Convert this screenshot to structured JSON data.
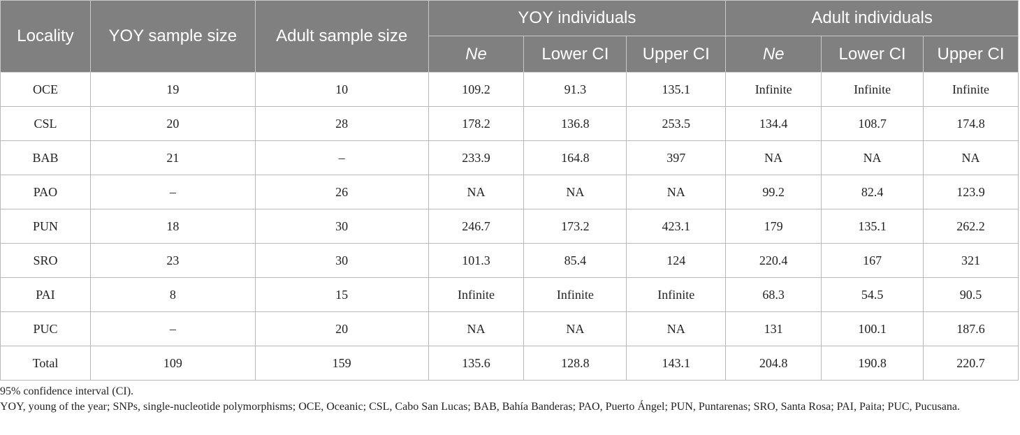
{
  "table": {
    "headers": {
      "locality": "Locality",
      "yoy_sample_size": "YOY sample size",
      "adult_sample_size": "Adult sample size",
      "yoy_group": "YOY individuals",
      "adult_group": "Adult individuals",
      "ne": "Ne",
      "lower_ci": "Lower CI",
      "upper_ci": "Upper CI"
    },
    "rows": [
      [
        "OCE",
        "19",
        "10",
        "109.2",
        "91.3",
        "135.1",
        "Infinite",
        "Infinite",
        "Infinite"
      ],
      [
        "CSL",
        "20",
        "28",
        "178.2",
        "136.8",
        "253.5",
        "134.4",
        "108.7",
        "174.8"
      ],
      [
        "BAB",
        "21",
        "–",
        "233.9",
        "164.8",
        "397",
        "NA",
        "NA",
        "NA"
      ],
      [
        "PAO",
        "–",
        "26",
        "NA",
        "NA",
        "NA",
        "99.2",
        "82.4",
        "123.9"
      ],
      [
        "PUN",
        "18",
        "30",
        "246.7",
        "173.2",
        "423.1",
        "179",
        "135.1",
        "262.2"
      ],
      [
        "SRO",
        "23",
        "30",
        "101.3",
        "85.4",
        "124",
        "220.4",
        "167",
        "321"
      ],
      [
        "PAI",
        "8",
        "15",
        "Infinite",
        "Infinite",
        "Infinite",
        "68.3",
        "54.5",
        "90.5"
      ],
      [
        "PUC",
        "–",
        "20",
        "NA",
        "NA",
        "NA",
        "131",
        "100.1",
        "187.6"
      ],
      [
        "Total",
        "109",
        "159",
        "135.6",
        "128.8",
        "143.1",
        "204.8",
        "190.8",
        "220.7"
      ]
    ]
  },
  "footnotes": [
    "95% confidence interval (CI).",
    "YOY, young of the year; SNPs, single-nucleotide polymorphisms; OCE, Oceanic; CSL, Cabo San Lucas; BAB, Bahía Banderas; PAO, Puerto Ángel; PUN, Puntarenas; SRO, Santa Rosa; PAI, Paita; PUC, Pucusana."
  ]
}
